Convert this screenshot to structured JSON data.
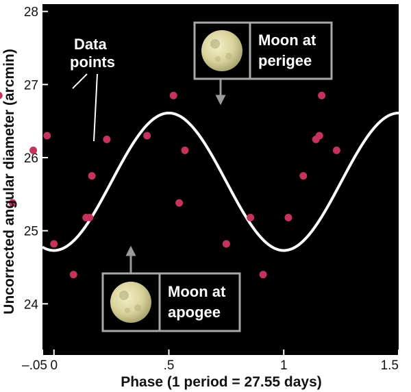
{
  "chart_data": {
    "type": "scatter",
    "xlabel": "Phase (1 period = 27.55 days)",
    "ylabel": "Uncorrected angular diameter (arcmin)",
    "xlim": [
      -0.05,
      1.5
    ],
    "ylim": [
      23.3,
      28.1
    ],
    "x_ticks": [
      {
        "value": -0.05,
        "label": "–.05"
      },
      {
        "value": 0,
        "label": "0"
      },
      {
        "value": 0.5,
        "label": ".5"
      },
      {
        "value": 1,
        "label": "1"
      },
      {
        "value": 1.5,
        "label": "1.5"
      }
    ],
    "y_ticks": [
      {
        "value": 24,
        "label": "24"
      },
      {
        "value": 25,
        "label": "25"
      },
      {
        "value": 26,
        "label": "26"
      },
      {
        "value": 27,
        "label": "27"
      },
      {
        "value": 28,
        "label": "28"
      }
    ],
    "grid": false,
    "background": "#000000",
    "series": [
      {
        "type": "scatter",
        "color": "#c4335c",
        "x": [
          -0.03,
          -0.24,
          -0.09,
          -0.18,
          0.0,
          0.085,
          0.14,
          0.155,
          0.165,
          0.23,
          0.405,
          0.52,
          0.545,
          0.57,
          0.75,
          0.855,
          0.91,
          1.02,
          1.085,
          1.14,
          1.155,
          1.165,
          1.23
        ],
        "y": [
          26.3,
          26.85,
          26.1,
          25.38,
          24.82,
          24.4,
          25.18,
          25.18,
          25.75,
          26.25,
          26.3,
          26.85,
          25.38,
          26.1,
          24.82,
          25.18,
          24.4,
          25.18,
          25.75,
          26.25,
          26.3,
          26.85,
          26.1
        ]
      },
      {
        "type": "line",
        "color": "#ffffff",
        "function": "cosine",
        "mean": 25.67,
        "amplitude": 0.94,
        "period": 1.0,
        "minimum_at_phase": 0.0
      }
    ],
    "annotations": [
      {
        "text": "Data points",
        "lines": [
          "Data",
          "points"
        ]
      },
      {
        "text": "Moon at perigee",
        "lines": [
          "Moon at",
          "perigee"
        ],
        "points_to": {
          "x": 0.5,
          "y": 26.61
        },
        "icon": "full-moon-icon"
      },
      {
        "text": "Moon at apogee",
        "lines": [
          "Moon at",
          "apogee"
        ],
        "points_to": {
          "x": 0.0,
          "y": 24.73
        },
        "icon": "full-moon-icon"
      }
    ]
  }
}
